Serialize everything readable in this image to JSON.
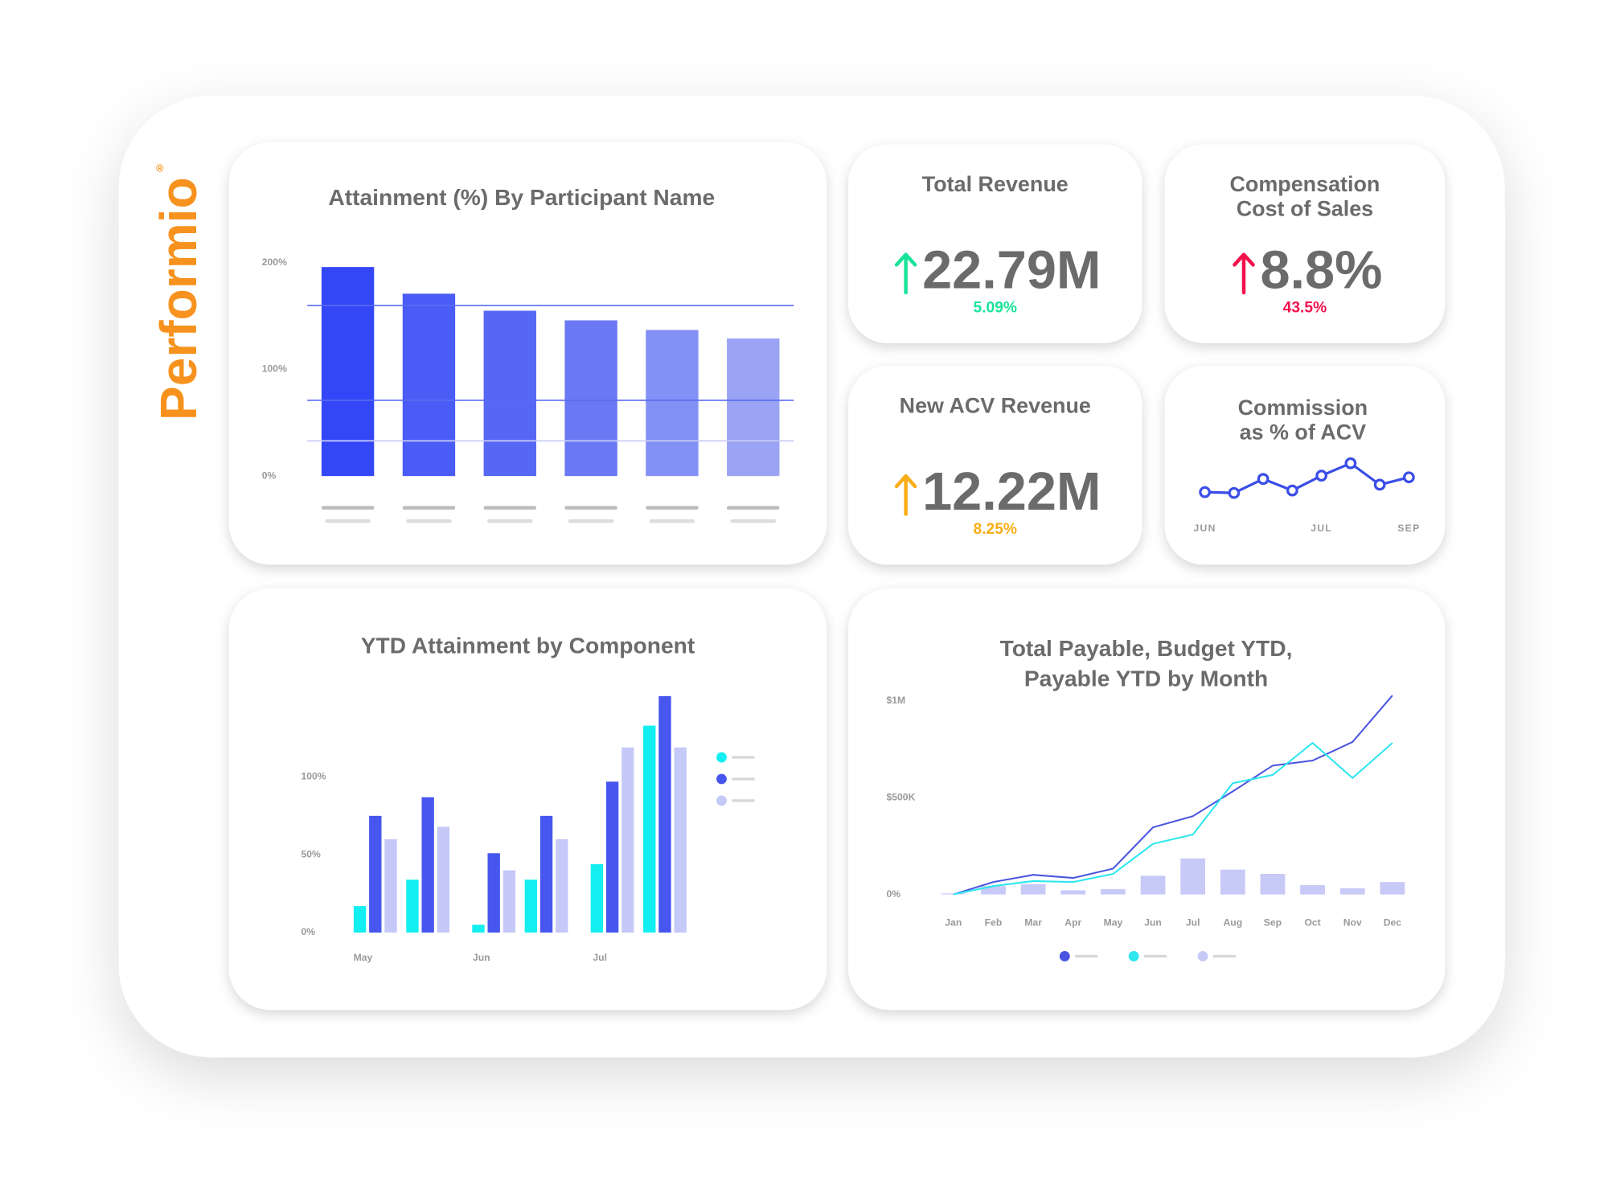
{
  "logo": {
    "text": "Performio",
    "mark": "®"
  },
  "kpis": [
    {
      "title": [
        "Total Revenue"
      ],
      "value": "22.79M",
      "change": "5.09%",
      "color": "#19e39b"
    },
    {
      "title": [
        "Compensation",
        "Cost of Sales"
      ],
      "value": "8.8%",
      "change": "43.5%",
      "color": "#f2114c"
    },
    {
      "title": [
        "New ACV Revenue"
      ],
      "value": "12.22M",
      "change": "8.25%",
      "color": "#f9ad17"
    }
  ],
  "chart_data": [
    {
      "type": "bar",
      "title": "Attainment (%) By Participant Name",
      "categories": [
        null,
        null,
        null,
        null,
        null,
        null
      ],
      "values": [
        196,
        171,
        155,
        146,
        137,
        129
      ],
      "colors": [
        "#3447f6",
        "#4a5bf6",
        "#5667f3",
        "#6a78f3",
        "#8390f5",
        "#9ba4f4"
      ],
      "ylim": [
        0,
        200
      ],
      "yticks": [
        {
          "value": 0,
          "label": "0%"
        },
        {
          "value": 100,
          "label": "100%"
        },
        {
          "value": 200,
          "label": "200%"
        }
      ],
      "reference_lines": [
        160,
        71,
        33
      ],
      "grid": false
    },
    {
      "type": "line",
      "title": [
        "Commission",
        "as % of ACV"
      ],
      "categories": [
        "JUN",
        null,
        null,
        null,
        "JUL",
        null,
        null,
        "SEP"
      ],
      "values": [
        13,
        12,
        29,
        15,
        33,
        48,
        22,
        31
      ],
      "color": "#3a4de6",
      "ylim": [
        0,
        60
      ]
    },
    {
      "type": "bar",
      "title": "YTD Attainment by Component",
      "categories": [
        "May",
        null,
        "Jun",
        null,
        "Jul",
        null
      ],
      "series": [
        {
          "color": "#13eff0",
          "values": [
            17,
            34,
            5,
            34,
            44,
            133
          ]
        },
        {
          "color": "#4756ee",
          "values": [
            75,
            87,
            51,
            75,
            97,
            152
          ]
        },
        {
          "color": "#c5c9f8",
          "values": [
            60,
            68,
            40,
            60,
            119,
            119
          ]
        }
      ],
      "ylim": [
        0,
        155
      ],
      "yticks": [
        {
          "value": 0,
          "label": "0%"
        },
        {
          "value": 50,
          "label": "50%"
        },
        {
          "value": 100,
          "label": "100%"
        }
      ],
      "grid": false
    },
    {
      "type": "combo",
      "title": [
        "Total Payable, Budget YTD,",
        "Payable YTD by Month"
      ],
      "categories": [
        "Jan",
        "Feb",
        "Mar",
        "Apr",
        "May",
        "Jun",
        "Jul",
        "Aug",
        "Sep",
        "Oct",
        "Nov",
        "Dec"
      ],
      "series": [
        {
          "type": "line",
          "color": "#4a55e0",
          "values": [
            0,
            64000,
            101000,
            85000,
            133000,
            346000,
            404000,
            532000,
            665000,
            691000,
            787000,
            1027000
          ]
        },
        {
          "type": "line",
          "color": "#2de6ef",
          "values": [
            0,
            43000,
            69000,
            64000,
            106000,
            261000,
            309000,
            574000,
            617000,
            782000,
            601000,
            782000
          ]
        },
        {
          "type": "bar",
          "color": "#c7caf6",
          "values": [
            5000,
            43000,
            53000,
            21000,
            27000,
            96000,
            186000,
            128000,
            106000,
            48000,
            32000,
            64000
          ]
        }
      ],
      "ylim": [
        0,
        1050000
      ],
      "yticks": [
        {
          "value": 0,
          "label": "0%"
        },
        {
          "value": 500000,
          "label": "$500K"
        },
        {
          "value": 1000000,
          "label": "$1M"
        }
      ],
      "grid": false
    }
  ]
}
